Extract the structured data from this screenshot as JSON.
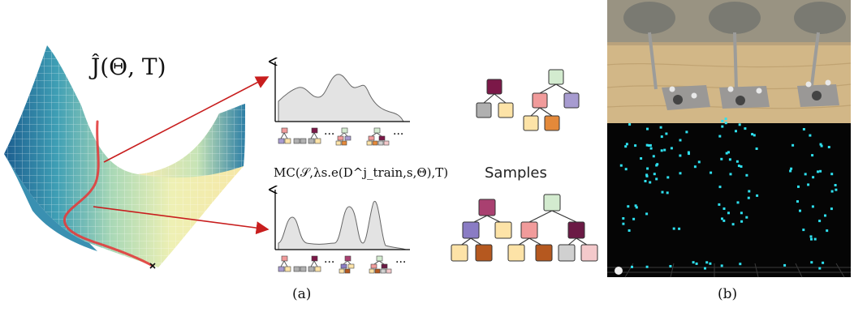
{
  "panel_a": {
    "surface_label": "Ĵ(Θ, T)",
    "formula_label": "MC(𝒮,λs.e(D^j_train,s,Θ),T)",
    "samples_label": "Samples",
    "ellipsis": "···",
    "caption": "(a)"
  },
  "panel_b": {
    "caption": "(b)"
  },
  "colors": {
    "arrow": "#c81e1e",
    "trajectory": "#e23c3c",
    "density_fill": "#e3e3e3",
    "node_maroon": "#7b1848",
    "node_yellow": "#fde3a7",
    "node_gray": "#b0b0b0",
    "node_mint": "#d3ebcf",
    "node_pink": "#f19b9b",
    "node_lavender": "#a79bd0",
    "node_orange": "#e4893a",
    "node_mauve": "#a94070",
    "node_purple": "#8a7cc4",
    "node_rust": "#b5581f",
    "node_lightpink": "#f4c9cb",
    "node_plum": "#6b1a45",
    "node_lightgray": "#d0d0d0",
    "point_cyan": "#2ee0ef"
  }
}
